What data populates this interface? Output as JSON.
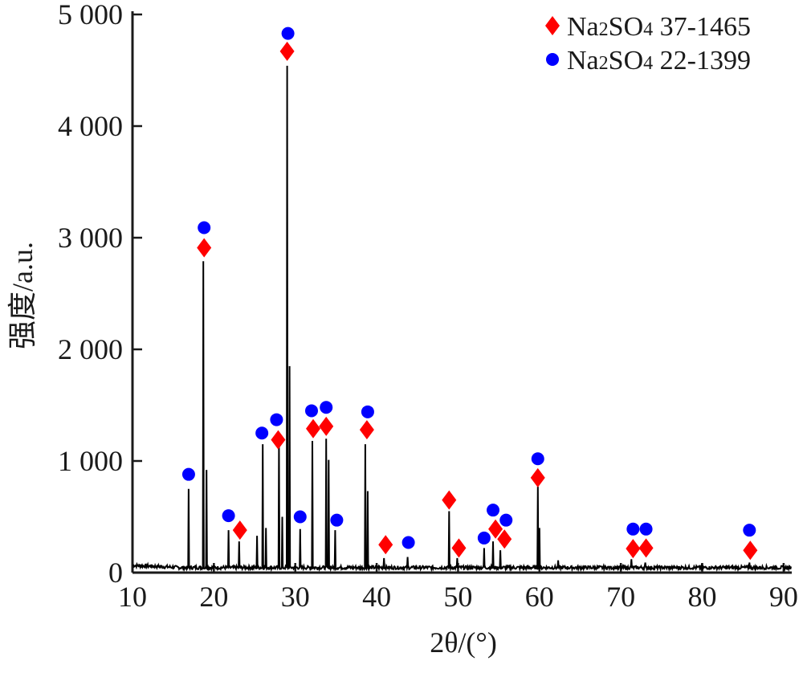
{
  "chart_data": {
    "type": "line",
    "title": "",
    "xlabel": "2θ/(°)",
    "ylabel": "强度/a.u.",
    "xlim": [
      10,
      91
    ],
    "ylim": [
      0,
      5000
    ],
    "x_ticks": [
      10,
      20,
      30,
      40,
      50,
      60,
      70,
      80,
      90
    ],
    "x_tick_labels": [
      "10",
      "20",
      "30",
      "40",
      "50",
      "60",
      "70",
      "80",
      "90"
    ],
    "y_ticks": [
      0,
      1000,
      2000,
      3000,
      4000,
      5000
    ],
    "y_tick_labels": [
      "0",
      "1 000",
      "2 000",
      "3 000",
      "4 000",
      "5 000"
    ],
    "grid": false,
    "legend_position": "top-right",
    "baseline": 45,
    "series": [
      {
        "kind": "xrd-peaks",
        "peaks": [
          {
            "x": 16.9,
            "y": 750
          },
          {
            "x": 18.7,
            "y": 2790
          },
          {
            "x": 19.1,
            "y": 920
          },
          {
            "x": 21.8,
            "y": 380
          },
          {
            "x": 23.1,
            "y": 280
          },
          {
            "x": 25.3,
            "y": 330
          },
          {
            "x": 26.0,
            "y": 1150
          },
          {
            "x": 26.4,
            "y": 400
          },
          {
            "x": 28.0,
            "y": 1170
          },
          {
            "x": 28.4,
            "y": 500
          },
          {
            "x": 29.0,
            "y": 4540
          },
          {
            "x": 29.3,
            "y": 1850
          },
          {
            "x": 30.6,
            "y": 390
          },
          {
            "x": 32.1,
            "y": 1180
          },
          {
            "x": 33.8,
            "y": 1200
          },
          {
            "x": 34.1,
            "y": 1010
          },
          {
            "x": 34.9,
            "y": 380
          },
          {
            "x": 38.6,
            "y": 1150
          },
          {
            "x": 38.9,
            "y": 730
          },
          {
            "x": 40.9,
            "y": 130
          },
          {
            "x": 43.8,
            "y": 140
          },
          {
            "x": 48.9,
            "y": 550
          },
          {
            "x": 49.9,
            "y": 130
          },
          {
            "x": 53.2,
            "y": 220
          },
          {
            "x": 54.3,
            "y": 280
          },
          {
            "x": 55.2,
            "y": 200
          },
          {
            "x": 59.8,
            "y": 770
          },
          {
            "x": 60.0,
            "y": 400
          },
          {
            "x": 62.3,
            "y": 110
          },
          {
            "x": 71.3,
            "y": 120
          },
          {
            "x": 73.0,
            "y": 90
          },
          {
            "x": 85.8,
            "y": 90
          }
        ]
      },
      {
        "name": "Na₂SO₄ 37-1465",
        "marker": "diamond",
        "color": "#ff0000",
        "points": [
          {
            "x": 18.8,
            "y": 2910
          },
          {
            "x": 23.2,
            "y": 380
          },
          {
            "x": 27.9,
            "y": 1190
          },
          {
            "x": 29.0,
            "y": 4670
          },
          {
            "x": 32.2,
            "y": 1290
          },
          {
            "x": 33.8,
            "y": 1310
          },
          {
            "x": 38.8,
            "y": 1280
          },
          {
            "x": 41.1,
            "y": 250
          },
          {
            "x": 48.9,
            "y": 650
          },
          {
            "x": 50.1,
            "y": 220
          },
          {
            "x": 54.6,
            "y": 390
          },
          {
            "x": 55.7,
            "y": 300
          },
          {
            "x": 59.8,
            "y": 850
          },
          {
            "x": 71.5,
            "y": 215
          },
          {
            "x": 73.1,
            "y": 220
          },
          {
            "x": 85.9,
            "y": 200
          }
        ]
      },
      {
        "name": "Na₂SO₄ 22-1399",
        "marker": "circle",
        "color": "#0000ff",
        "points": [
          {
            "x": 16.9,
            "y": 880
          },
          {
            "x": 18.8,
            "y": 3090
          },
          {
            "x": 21.8,
            "y": 510
          },
          {
            "x": 25.9,
            "y": 1250
          },
          {
            "x": 27.7,
            "y": 1370
          },
          {
            "x": 29.1,
            "y": 4830
          },
          {
            "x": 30.6,
            "y": 500
          },
          {
            "x": 32.0,
            "y": 1450
          },
          {
            "x": 33.8,
            "y": 1480
          },
          {
            "x": 35.1,
            "y": 470
          },
          {
            "x": 38.9,
            "y": 1440
          },
          {
            "x": 43.9,
            "y": 270
          },
          {
            "x": 53.2,
            "y": 310
          },
          {
            "x": 54.3,
            "y": 560
          },
          {
            "x": 55.9,
            "y": 470
          },
          {
            "x": 59.8,
            "y": 1020
          },
          {
            "x": 71.5,
            "y": 390
          },
          {
            "x": 73.1,
            "y": 390
          },
          {
            "x": 85.8,
            "y": 380
          }
        ]
      }
    ],
    "legend": [
      {
        "marker": "diamond",
        "color": "#ff0000",
        "formula_base": "Na",
        "formula_sub1": "2",
        "formula_mid": "SO",
        "formula_sub2": "4",
        "code": "37-1465"
      },
      {
        "marker": "circle",
        "color": "#0000ff",
        "formula_base": "Na",
        "formula_sub1": "2",
        "formula_mid": "SO",
        "formula_sub2": "4",
        "code": "22-1399"
      }
    ]
  }
}
